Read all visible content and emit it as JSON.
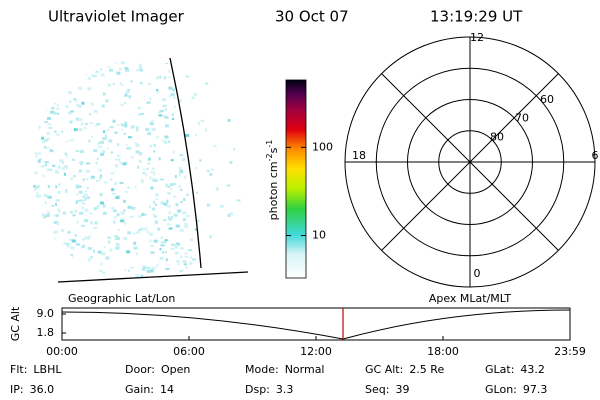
{
  "header": {
    "instrument": "Ultraviolet Imager",
    "date": "30 Oct 07",
    "time": "13:19:29 UT"
  },
  "image": {
    "label": "Geographic Lat/Lon"
  },
  "colorbar": {
    "unit": "photon cm",
    "exp1": "-2",
    "unit2": "s",
    "exp2": "-1",
    "ticks": [
      10,
      100
    ],
    "lim": [
      3.3,
      580
    ],
    "log": true
  },
  "polar": {
    "label": "Apex MLat/MLT",
    "mlt_ticks": [
      12,
      18,
      6,
      0
    ],
    "lat_ticks": [
      60,
      70,
      80
    ],
    "lat_lim": [
      50,
      90
    ]
  },
  "altitude": {
    "ylabel": "GC Alt",
    "yticks": [
      {
        "value": 9.0,
        "label": "9.0"
      },
      {
        "value": 1.8,
        "label": "1.8"
      }
    ],
    "xticks": [
      "00:00",
      "06:00",
      "12:00",
      "18:00",
      "23:59"
    ]
  },
  "footer": {
    "rows": [
      [
        {
          "label": "Flt:",
          "value": "LBHL"
        },
        {
          "label": "Door:",
          "value": "Open"
        },
        {
          "label": "Mode:",
          "value": "Normal"
        },
        {
          "label": "GC Alt:",
          "value": "2.5 Re"
        },
        {
          "label": "GLat:",
          "value": "43.2"
        }
      ],
      [
        {
          "label": "IP:",
          "value": "36.0"
        },
        {
          "label": "Gain:",
          "value": "14"
        },
        {
          "label": "Dsp:",
          "value": "3.3"
        },
        {
          "label": "Seq:",
          "value": "39"
        },
        {
          "label": "GLon:",
          "value": "97.3"
        }
      ]
    ]
  }
}
